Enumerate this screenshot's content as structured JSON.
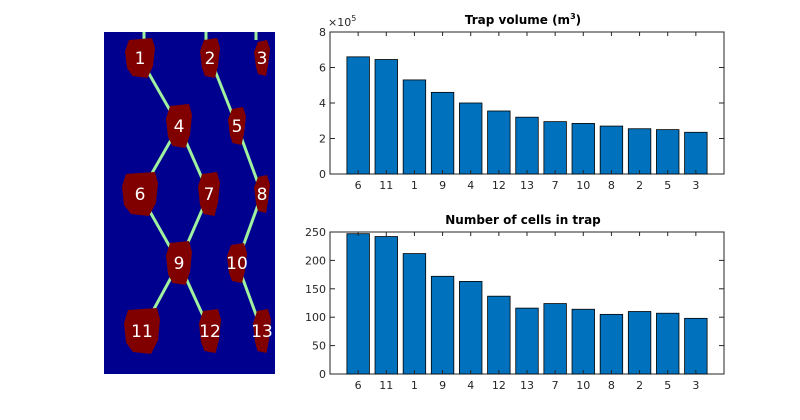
{
  "trap_map": {
    "background_color": "#00008f",
    "trap_color": "#800000",
    "connection_color": "#9ff09f",
    "traps": [
      {
        "id": "1",
        "label": "1"
      },
      {
        "id": "2",
        "label": "2"
      },
      {
        "id": "3",
        "label": "3"
      },
      {
        "id": "4",
        "label": "4"
      },
      {
        "id": "5",
        "label": "5"
      },
      {
        "id": "6",
        "label": "6"
      },
      {
        "id": "7",
        "label": "7"
      },
      {
        "id": "8",
        "label": "8"
      },
      {
        "id": "9",
        "label": "9"
      },
      {
        "id": "10",
        "label": "10"
      },
      {
        "id": "11",
        "label": "11"
      },
      {
        "id": "12",
        "label": "12"
      },
      {
        "id": "13",
        "label": "13"
      }
    ],
    "connections": [
      [
        "1",
        "4"
      ],
      [
        "2",
        "5"
      ],
      [
        "4",
        "6"
      ],
      [
        "4",
        "7"
      ],
      [
        "5",
        "8"
      ],
      [
        "6",
        "9"
      ],
      [
        "7",
        "9"
      ],
      [
        "8",
        "10"
      ],
      [
        "9",
        "11"
      ],
      [
        "9",
        "12"
      ],
      [
        "10",
        "13"
      ]
    ]
  },
  "chart_data": [
    {
      "type": "bar",
      "title": "Trap volume (m",
      "title_superscript": "3",
      "title_suffix": ")",
      "exponent_label": "×10",
      "exponent_power": "5",
      "categories": [
        "6",
        "11",
        "1",
        "9",
        "4",
        "12",
        "13",
        "7",
        "10",
        "8",
        "2",
        "5",
        "3"
      ],
      "values": [
        6.6,
        6.45,
        5.3,
        4.6,
        4.0,
        3.55,
        3.2,
        2.95,
        2.85,
        2.7,
        2.55,
        2.5,
        2.35
      ],
      "ylim": [
        0,
        8
      ],
      "yticks": [
        "0",
        "2",
        "4",
        "6",
        "8"
      ],
      "bar_color": "#0072bd",
      "xlabel": "",
      "ylabel": ""
    },
    {
      "type": "bar",
      "title": "Number of cells in trap",
      "categories": [
        "6",
        "11",
        "1",
        "9",
        "4",
        "12",
        "13",
        "7",
        "10",
        "8",
        "2",
        "5",
        "3"
      ],
      "values": [
        247,
        242,
        212,
        172,
        163,
        137,
        116,
        124,
        114,
        105,
        110,
        107,
        98
      ],
      "ylim": [
        0,
        250
      ],
      "yticks": [
        "0",
        "50",
        "100",
        "150",
        "200",
        "250"
      ],
      "bar_color": "#0072bd",
      "xlabel": "",
      "ylabel": ""
    }
  ]
}
